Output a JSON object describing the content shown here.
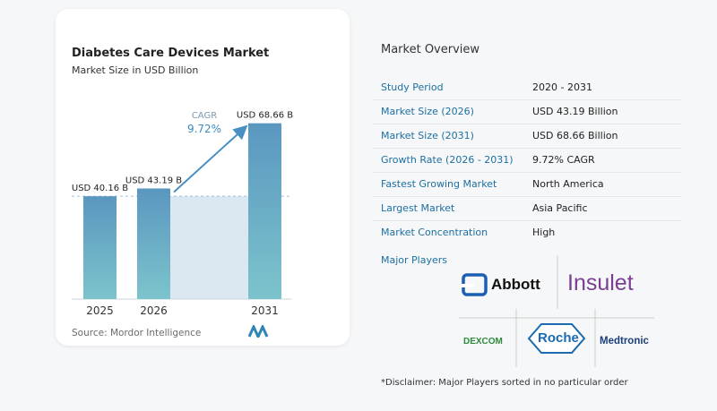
{
  "chart_title": "Diabetes Care Devices Market",
  "chart_subtitle": "Market Size in USD Billion",
  "source": "Source:  Mordor Intelligence",
  "cagr": {
    "label": "CAGR",
    "value": "9.72%"
  },
  "colors": {
    "bar": "#5a97c0",
    "bar_bottom": "#7cc4cc",
    "accent": "#4a90c2",
    "region": "#dbe7f1"
  },
  "chart_data": {
    "type": "bar",
    "categories": [
      "2025",
      "2026",
      "2031"
    ],
    "values": [
      40.16,
      43.19,
      68.66
    ],
    "labels": [
      "USD 40.16 B",
      "USD 43.19 B",
      "USD 68.66 B"
    ],
    "title": "Diabetes Care Devices Market",
    "subtitle": "Market Size in USD Billion",
    "ylim": [
      0,
      70
    ],
    "grid": false
  },
  "overview": {
    "title": "Market Overview",
    "rows": [
      {
        "key": "Study Period",
        "value": "2020 - 2031"
      },
      {
        "key": "Market Size (2026)",
        "value": "USD 43.19 Billion"
      },
      {
        "key": "Market Size (2031)",
        "value": "USD 68.66 Billion"
      },
      {
        "key": "Growth Rate (2026 - 2031)",
        "value": "9.72% CAGR"
      },
      {
        "key": "Fastest Growing Market",
        "value": "North America"
      },
      {
        "key": "Largest Market",
        "value": "Asia Pacific"
      },
      {
        "key": "Market Concentration",
        "value": "High"
      }
    ]
  },
  "players": {
    "label": "Major Players",
    "logos": [
      "Abbott",
      "Insulet",
      "DEXCOM",
      "Roche",
      "Medtronic"
    ]
  },
  "disclaimer": "*Disclaimer: Major Players sorted in no particular order"
}
